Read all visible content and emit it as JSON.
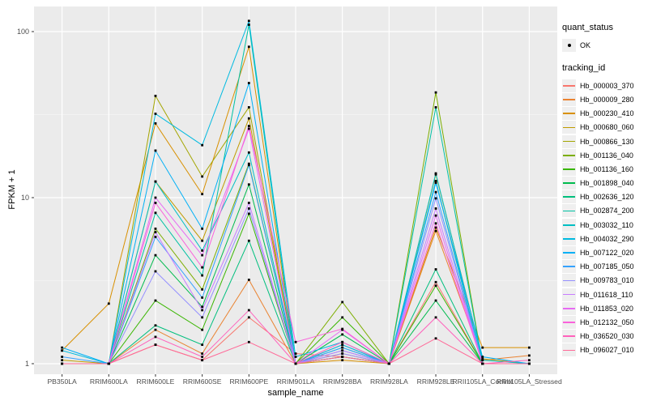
{
  "theme": {
    "panel_bg": "#EBEBEB",
    "grid_major": "#FFFFFF",
    "grid_minor": "#F5F5F5",
    "axis_text_color": "#4D4D4D",
    "tick_color": "#333333",
    "marker_color": "#000000",
    "legend_key_bg": "#EFEFEF"
  },
  "axis": {
    "x_title": "sample_name",
    "y_title": "FPKM + 1",
    "y_tick_labels": [
      "1",
      "10",
      "100"
    ]
  },
  "legend": {
    "quant_status_title": "quant_status",
    "ok_label": "OK",
    "tracking_id_title": "tracking_id"
  },
  "chart_data": {
    "type": "line",
    "title": "",
    "xlabel": "sample_name",
    "ylabel": "FPKM + 1",
    "y_scale": "log10",
    "y_ticks": [
      1,
      10,
      100
    ],
    "y_minor_ticks": [
      3.162,
      31.62
    ],
    "ylim": [
      0.93,
      150
    ],
    "grid": true,
    "legend_position": "right",
    "marker": {
      "shape": "point",
      "color": "#000000",
      "size": 3
    },
    "categories": [
      "PB350LA",
      "RRIM600LA",
      "RRIM600LE",
      "RRIM600SE",
      "RRIM600PE",
      "RRIM901LA",
      "RRIM928BA",
      "RRIM928LA",
      "RRIM928LE",
      "RRII105LA_Control",
      "RRII105LA_Stressed"
    ],
    "series": [
      {
        "name": "Hb_000003_370",
        "color": "#F8766D",
        "values": [
          1.0,
          1.0,
          1.3,
          1.05,
          1.9,
          1.15,
          1.1,
          1.0,
          3.1,
          1.0,
          1.0
        ]
      },
      {
        "name": "Hb_000009_280",
        "color": "#EA8331",
        "values": [
          1.0,
          1.0,
          1.6,
          1.15,
          3.2,
          1.0,
          1.15,
          1.0,
          6.3,
          1.05,
          1.12
        ]
      },
      {
        "name": "Hb_000230_410",
        "color": "#D89000",
        "values": [
          1.2,
          2.3,
          28,
          10.5,
          81,
          1.0,
          1.05,
          1.0,
          6.6,
          1.25,
          1.25
        ]
      },
      {
        "name": "Hb_000680_060",
        "color": "#C09B00",
        "values": [
          1.05,
          1.0,
          12.5,
          5.5,
          30,
          1.0,
          1.1,
          1.0,
          13.8,
          1.07,
          1.0
        ]
      },
      {
        "name": "Hb_000866_130",
        "color": "#A3A500",
        "values": [
          1.0,
          1.0,
          41,
          13.4,
          35,
          1.0,
          1.3,
          1.0,
          12.5,
          1.0,
          1.0
        ]
      },
      {
        "name": "Hb_001136_040",
        "color": "#7CAE00",
        "values": [
          1.0,
          1.0,
          6.5,
          2.8,
          16,
          1.0,
          2.35,
          1.0,
          43,
          1.0,
          1.0
        ]
      },
      {
        "name": "Hb_001136_160",
        "color": "#39B600",
        "values": [
          1.0,
          1.0,
          2.4,
          1.6,
          8.0,
          1.0,
          1.9,
          1.0,
          2.95,
          1.0,
          1.0
        ]
      },
      {
        "name": "Hb_001898_040",
        "color": "#00BB4E",
        "values": [
          1.0,
          1.0,
          4.5,
          2.2,
          12,
          1.0,
          1.5,
          1.0,
          2.4,
          1.0,
          1.0
        ]
      },
      {
        "name": "Hb_002636_120",
        "color": "#00BF7D",
        "values": [
          1.0,
          1.0,
          1.7,
          1.3,
          5.5,
          1.0,
          1.25,
          1.0,
          3.7,
          1.0,
          1.0
        ]
      },
      {
        "name": "Hb_002874_200",
        "color": "#00C1A3",
        "values": [
          1.0,
          1.0,
          8.1,
          3.4,
          110,
          1.0,
          1.1,
          1.0,
          35,
          1.0,
          1.0
        ]
      },
      {
        "name": "Hb_003032_110",
        "color": "#00BFC4",
        "values": [
          1.0,
          1.0,
          12.5,
          4.8,
          18.7,
          1.0,
          1.2,
          1.0,
          14,
          1.05,
          1.0
        ]
      },
      {
        "name": "Hb_004032_290",
        "color": "#00BAE0",
        "values": [
          1.2,
          1.0,
          32,
          20.7,
          116,
          1.1,
          1.35,
          1.0,
          12.6,
          1.0,
          1.0
        ]
      },
      {
        "name": "Hb_007122_020",
        "color": "#00B0F6",
        "values": [
          1.25,
          1.0,
          19.2,
          6.5,
          49,
          1.0,
          1.3,
          1.0,
          12.3,
          1.1,
          1.0
        ]
      },
      {
        "name": "Hb_007185_050",
        "color": "#35A2FF",
        "values": [
          1.1,
          1.0,
          5.8,
          2.5,
          15.7,
          1.0,
          1.25,
          1.0,
          10.8,
          1.0,
          1.0
        ]
      },
      {
        "name": "Hb_009783_010",
        "color": "#9590FF",
        "values": [
          1.0,
          1.0,
          3.6,
          1.9,
          8.6,
          1.0,
          1.15,
          1.0,
          9.9,
          1.0,
          1.0
        ]
      },
      {
        "name": "Hb_011618_110",
        "color": "#C77CFF",
        "values": [
          1.0,
          1.0,
          6.2,
          2.1,
          9.3,
          1.0,
          1.2,
          1.0,
          8.6,
          1.0,
          1.0
        ]
      },
      {
        "name": "Hb_011853_020",
        "color": "#E76BF3",
        "values": [
          1.0,
          1.0,
          10,
          4.5,
          26,
          1.0,
          1.6,
          1.0,
          7.8,
          1.0,
          1.0
        ]
      },
      {
        "name": "Hb_012132_050",
        "color": "#FA62DB",
        "values": [
          1.0,
          1.0,
          9.3,
          3.8,
          27,
          1.35,
          1.62,
          1.0,
          7.0,
          1.0,
          1.0
        ]
      },
      {
        "name": "Hb_036520_030",
        "color": "#FF62BC",
        "values": [
          1.0,
          1.0,
          1.45,
          1.1,
          2.1,
          1.0,
          1.35,
          1.0,
          1.9,
          1.0,
          1.05
        ]
      },
      {
        "name": "Hb_096027_010",
        "color": "#FF6A98",
        "values": [
          1.0,
          1.0,
          1.3,
          1.05,
          1.35,
          1.0,
          1.1,
          1.0,
          1.42,
          1.0,
          1.0
        ]
      }
    ]
  }
}
